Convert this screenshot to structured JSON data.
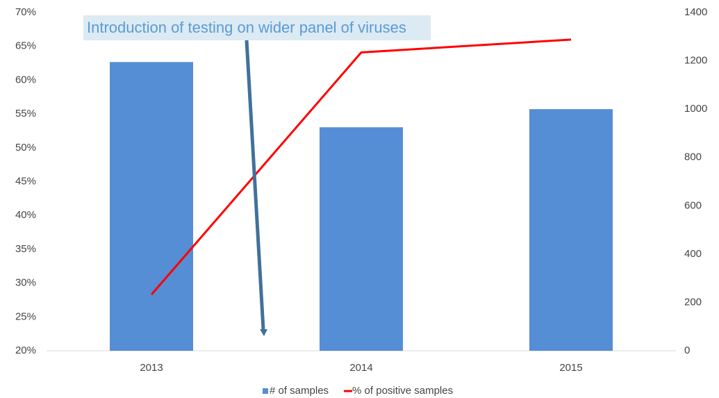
{
  "chart_data": {
    "type": "combo",
    "annotations": [
      "Introduction of testing on wider panel of viruses"
    ],
    "categories": [
      "2013",
      "2014",
      "2015"
    ],
    "series": [
      {
        "name": "# of samples",
        "type": "bar",
        "axis": "y2",
        "color": "#558ed5",
        "values": [
          1195,
          925,
          1000
        ]
      },
      {
        "name": "% of positive samples",
        "type": "line",
        "axis": "y",
        "color": "#ff0000",
        "values": [
          28.3,
          64.1,
          66
        ]
      }
    ],
    "ylim": [
      20,
      70
    ],
    "yticks": [
      {
        "value": 20,
        "label": "20%"
      },
      {
        "value": 25,
        "label": "25%"
      },
      {
        "value": 30,
        "label": "30%"
      },
      {
        "value": 35,
        "label": "35%"
      },
      {
        "value": 40,
        "label": "40%"
      },
      {
        "value": 45,
        "label": "45%"
      },
      {
        "value": 50,
        "label": "50%"
      },
      {
        "value": 55,
        "label": "55%"
      },
      {
        "value": 60,
        "label": "60%"
      },
      {
        "value": 65,
        "label": "65%"
      },
      {
        "value": 70,
        "label": "70%"
      }
    ],
    "y2lim": [
      0,
      1400
    ],
    "y2ticks": [
      0,
      200,
      400,
      600,
      800,
      1000,
      1200,
      1400
    ],
    "grid": false,
    "legend": "bottom"
  }
}
